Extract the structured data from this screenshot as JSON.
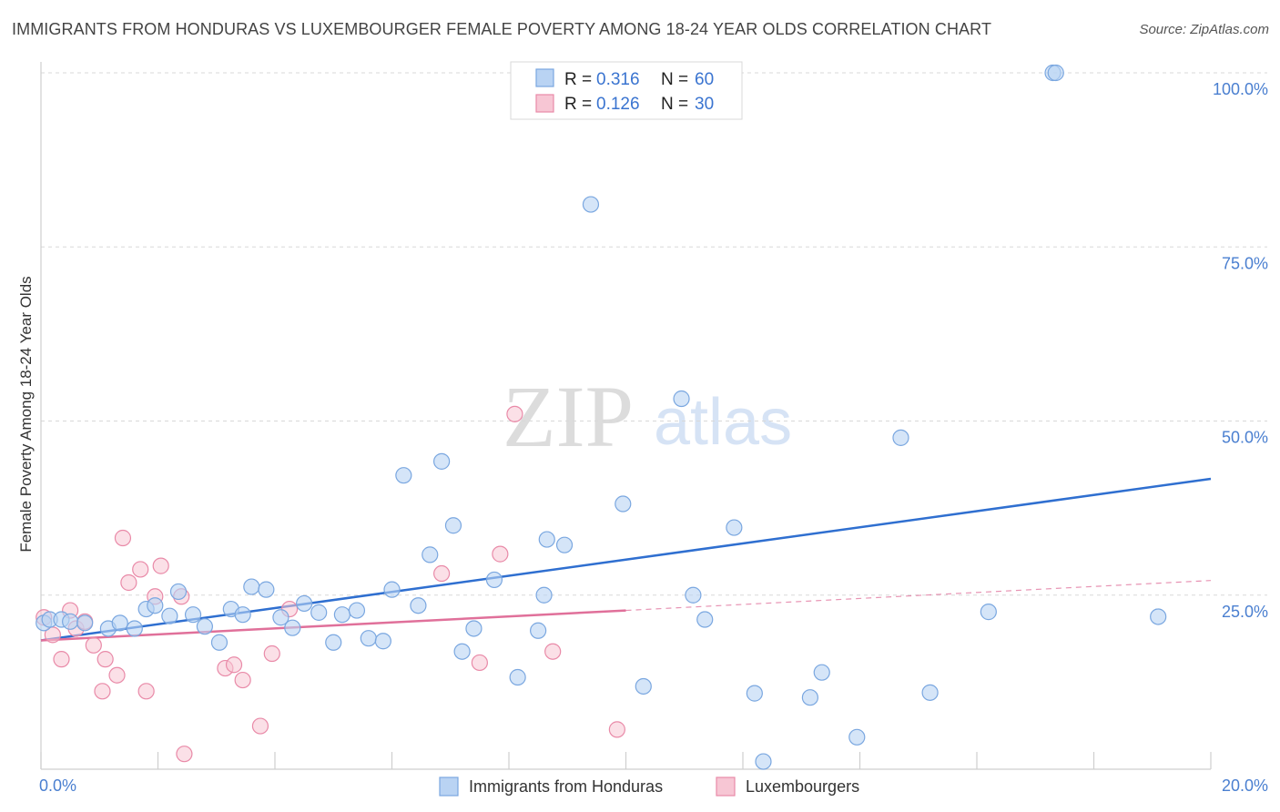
{
  "header": {
    "title": "IMMIGRANTS FROM HONDURAS VS LUXEMBOURGER FEMALE POVERTY AMONG 18-24 YEAR OLDS CORRELATION CHART",
    "source": "Source: ZipAtlas.com"
  },
  "watermark": {
    "zip": "ZIP",
    "atlas": "atlas"
  },
  "colors": {
    "blue_fill": "#b9d3f3",
    "blue_stroke": "#7aa7e0",
    "blue_line": "#2f6fd0",
    "pink_fill": "#f7c6d4",
    "pink_stroke": "#e98aa8",
    "pink_line": "#e0709a",
    "grid": "#d8d8d8",
    "tick_label": "#4a7fd0"
  },
  "chart_data": {
    "type": "scatter",
    "title": "IMMIGRANTS FROM HONDURAS VS LUXEMBOURGER FEMALE POVERTY AMONG 18-24 YEAR OLDS CORRELATION CHART",
    "xlabel": "",
    "ylabel": "Female Poverty Among 18-24 Year Olds",
    "xlim": [
      0,
      20
    ],
    "ylim": [
      0,
      100
    ],
    "x_tick_labels": [
      {
        "value": 0,
        "label": "0.0%"
      },
      {
        "value": 20,
        "label": "20.0%"
      }
    ],
    "y_tick_labels": [
      {
        "value": 25,
        "label": "25.0%"
      },
      {
        "value": 50,
        "label": "50.0%"
      },
      {
        "value": 75,
        "label": "75.0%"
      },
      {
        "value": 100,
        "label": "100.0%"
      }
    ],
    "grid": "horizontal dashed",
    "legend_position": "top-center",
    "legend": [
      {
        "series": "Immigrants from Honduras",
        "r_label": "R = ",
        "r_value": "0.316",
        "n_label": "N = ",
        "n_value": "60"
      },
      {
        "series": "Luxembourgers",
        "r_label": "R = ",
        "r_value": "0.126",
        "n_label": "N = ",
        "n_value": "30"
      }
    ],
    "series": [
      {
        "name": "Immigrants from Honduras",
        "color": "#b9d3f3",
        "trend": {
          "x": [
            0,
            20
          ],
          "y": [
            18.5,
            41.7
          ]
        },
        "points": [
          [
            0.05,
            21
          ],
          [
            0.15,
            21.5
          ],
          [
            0.35,
            21.5
          ],
          [
            0.5,
            21.2
          ],
          [
            0.75,
            21
          ],
          [
            1.15,
            20.2
          ],
          [
            1.35,
            21
          ],
          [
            1.6,
            20.2
          ],
          [
            1.8,
            23
          ],
          [
            1.95,
            23.5
          ],
          [
            2.2,
            22
          ],
          [
            2.35,
            25.5
          ],
          [
            2.6,
            22.2
          ],
          [
            2.8,
            20.5
          ],
          [
            3.05,
            18.2
          ],
          [
            3.25,
            23
          ],
          [
            3.45,
            22.2
          ],
          [
            3.6,
            26.2
          ],
          [
            3.85,
            25.8
          ],
          [
            4.1,
            21.8
          ],
          [
            4.3,
            20.3
          ],
          [
            4.5,
            23.8
          ],
          [
            4.75,
            22.5
          ],
          [
            5.0,
            18.2
          ],
          [
            5.15,
            22.2
          ],
          [
            5.4,
            22.8
          ],
          [
            5.6,
            18.8
          ],
          [
            5.85,
            18.4
          ],
          [
            6.0,
            25.8
          ],
          [
            6.2,
            42.2
          ],
          [
            6.45,
            23.5
          ],
          [
            6.65,
            30.8
          ],
          [
            6.85,
            44.2
          ],
          [
            7.05,
            35
          ],
          [
            7.2,
            16.9
          ],
          [
            7.4,
            20.2
          ],
          [
            7.75,
            27.2
          ],
          [
            8.15,
            13.2
          ],
          [
            8.5,
            19.9
          ],
          [
            8.6,
            25
          ],
          [
            8.65,
            33
          ],
          [
            8.95,
            32.2
          ],
          [
            9.4,
            81.1
          ],
          [
            9.95,
            38.1
          ],
          [
            10.3,
            11.9
          ],
          [
            10.95,
            53.2
          ],
          [
            11.15,
            25
          ],
          [
            11.35,
            21.5
          ],
          [
            11.85,
            34.7
          ],
          [
            12.2,
            10.9
          ],
          [
            12.35,
            1.1
          ],
          [
            13.15,
            10.3
          ],
          [
            13.35,
            13.9
          ],
          [
            13.95,
            4.6
          ],
          [
            14.7,
            47.6
          ],
          [
            15.2,
            11
          ],
          [
            16.2,
            22.6
          ],
          [
            17.3,
            100
          ],
          [
            17.35,
            100
          ],
          [
            19.1,
            21.9
          ]
        ]
      },
      {
        "name": "Luxembourgers",
        "color": "#f7c6d4",
        "trend": {
          "x": [
            0,
            10
          ],
          "y": [
            18.5,
            22.8
          ],
          "dashed_extension": {
            "x": [
              10,
              20
            ],
            "y": [
              22.8,
              27.1
            ]
          }
        },
        "points": [
          [
            0.05,
            21.8
          ],
          [
            0.2,
            19.3
          ],
          [
            0.35,
            15.8
          ],
          [
            0.5,
            22.8
          ],
          [
            0.6,
            20.2
          ],
          [
            0.75,
            21.2
          ],
          [
            0.9,
            17.8
          ],
          [
            1.1,
            15.8
          ],
          [
            1.05,
            11.2
          ],
          [
            1.3,
            13.5
          ],
          [
            1.4,
            33.2
          ],
          [
            1.5,
            26.8
          ],
          [
            1.7,
            28.7
          ],
          [
            1.8,
            11.2
          ],
          [
            1.95,
            24.8
          ],
          [
            2.05,
            29.2
          ],
          [
            2.4,
            24.8
          ],
          [
            2.45,
            2.2
          ],
          [
            3.15,
            14.5
          ],
          [
            3.3,
            15
          ],
          [
            3.45,
            12.8
          ],
          [
            3.75,
            6.2
          ],
          [
            3.95,
            16.6
          ],
          [
            4.25,
            23
          ],
          [
            6.85,
            28.1
          ],
          [
            7.5,
            15.3
          ],
          [
            7.85,
            30.9
          ],
          [
            8.1,
            51
          ],
          [
            8.75,
            16.9
          ],
          [
            9.85,
            5.7
          ]
        ]
      }
    ]
  }
}
